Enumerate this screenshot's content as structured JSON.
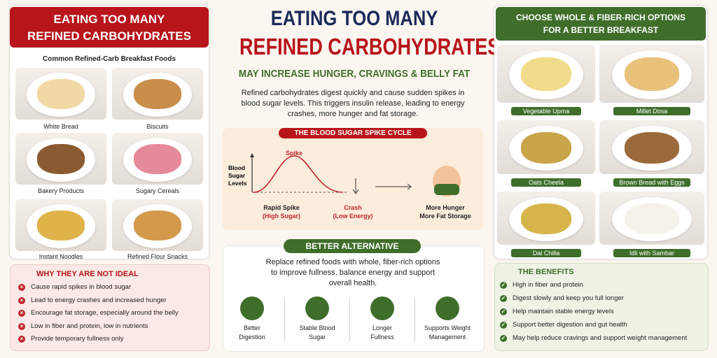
{
  "left": {
    "title": [
      "EATING TOO MANY",
      "REFINED CARBOHYDRATES"
    ],
    "subtitle": "Common Refined-Carb Breakfast Foods",
    "foods": [
      "White Bread",
      "Biscuits",
      "Bakery Products",
      "Sugary Cereals",
      "Instant Noodles",
      "Refined Flour Snacks"
    ],
    "why": {
      "heading": "WHY THEY ARE NOT IDEAL",
      "items": [
        "Cause rapid spikes in blood sugar",
        "Lead to energy crashes and increased hunger",
        "Encourage fat storage, especially around the belly",
        "Low in fiber and protein, low in nutrients",
        "Provide temporary fullness only"
      ]
    }
  },
  "center": {
    "title": [
      "EATING TOO MANY",
      "REFINED CARBOHYDRATES"
    ],
    "subtitle": "MAY INCREASE HUNGER, CRAVINGS & BELLY FAT",
    "intro": [
      "Refined carbohydrates digest quickly and cause sudden spikes in",
      "blood sugar levels. This triggers insulin release, leading to energy",
      "crashes, more hunger and fat storage."
    ],
    "cycle": {
      "title": "THE BLOOD SUGAR SPIKE CYCLE",
      "axis": [
        "Blood",
        "Sugar",
        "Levels"
      ],
      "spike": "Spike",
      "rapid": [
        "Rapid Spike",
        "(High Sugar)"
      ],
      "crash": [
        "Crash",
        "(Low Energy)"
      ],
      "result": [
        "More Hunger",
        "More Fat Storage"
      ]
    },
    "better": {
      "heading": "BETTER ALTERNATIVE",
      "text": [
        "Replace refined foods with whole, fiber-rich options",
        "to improve fullness, balance energy and support",
        "overall health."
      ],
      "items": [
        [
          "Better",
          "Digestion"
        ],
        [
          "Stable Blood",
          "Sugar"
        ],
        [
          "Longer",
          "Fullness"
        ],
        [
          "Supports Weight",
          "Management"
        ]
      ]
    }
  },
  "right": {
    "heading": [
      "CHOOSE WHOLE & FIBER-RICH OPTIONS",
      "FOR A BETTER BREAKFAST"
    ],
    "foods": [
      "Vegetable Upma",
      "Millet Dosa",
      "Oats Cheela",
      "Brown Bread with Eggs",
      "Dal Chilla",
      "Idli with Sambar"
    ],
    "benefits": {
      "heading": "THE BENEFITS",
      "items": [
        "High in fiber and protein",
        "Digest slowly and keep you full longer",
        "Help maintain stable energy levels",
        "Support better digestion and gut health",
        "May help reduce cravings and support weight management"
      ]
    }
  }
}
